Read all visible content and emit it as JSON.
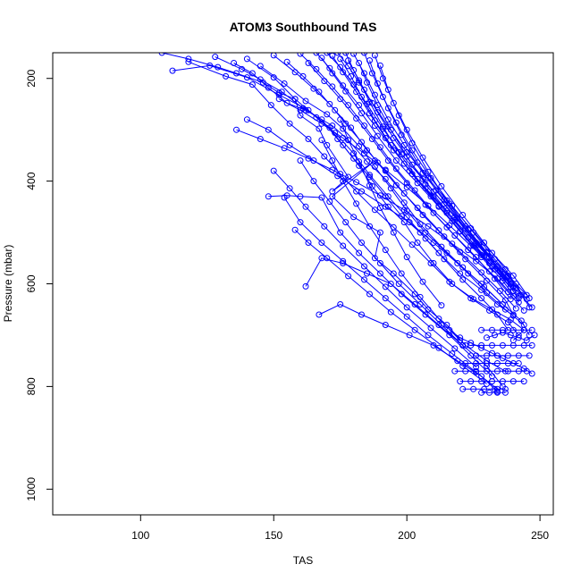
{
  "chart_data": {
    "type": "line",
    "title": "ATOM3 Southbound TAS",
    "xlabel": "TAS",
    "ylabel": "Pressure (mbar)",
    "xlim": [
      67,
      255
    ],
    "ylim": [
      1050,
      150
    ],
    "y_reversed": true,
    "x_ticks": [
      100,
      150,
      200,
      250
    ],
    "y_ticks": [
      200,
      400,
      600,
      800,
      1000
    ],
    "grid": false,
    "legend": "none",
    "marker": "open-circle",
    "colors": {
      "series": "#0000ff",
      "axis": "#000000",
      "background": "#ffffff"
    },
    "series": [
      {
        "x": [
          108,
          118,
          129,
          136,
          146,
          152,
          158,
          160,
          167,
          170,
          178,
          172,
          188,
          172,
          180,
          190,
          188,
          195,
          203,
          208,
          215,
          222,
          230,
          237
        ],
        "y": [
          150,
          162,
          178,
          190,
          208,
          228,
          240,
          272,
          298,
          330,
          392,
          420,
          360,
          430,
          470,
          500,
          550,
          580,
          620,
          650,
          680,
          720,
          750,
          770
        ]
      },
      {
        "x": [
          112,
          126,
          140,
          152,
          163,
          171,
          176,
          182,
          187,
          193,
          199,
          204,
          210,
          217,
          225,
          232,
          239,
          244,
          240
        ],
        "y": [
          185,
          175,
          198,
          232,
          262,
          296,
          330,
          370,
          410,
          450,
          480,
          520,
          560,
          600,
          630,
          650,
          670,
          690,
          710
        ]
      },
      {
        "x": [
          118,
          132,
          142,
          149,
          156,
          163,
          169,
          175,
          181,
          188,
          195,
          202,
          209,
          216,
          224,
          231,
          238,
          242
        ],
        "y": [
          168,
          196,
          212,
          252,
          288,
          318,
          352,
          386,
          420,
          456,
          490,
          524,
          560,
          596,
          628,
          652,
          675,
          700
        ]
      },
      {
        "x": [
          128,
          138,
          145,
          153,
          161,
          168,
          174,
          180,
          186,
          192,
          198,
          205,
          212,
          220,
          228,
          234,
          240
        ],
        "y": [
          158,
          182,
          202,
          226,
          258,
          280,
          318,
          356,
          392,
          430,
          468,
          500,
          540,
          580,
          612,
          640,
          662
        ]
      },
      {
        "x": [
          135,
          142,
          148,
          155,
          162,
          172,
          178,
          185,
          192,
          199,
          205,
          213,
          221,
          229,
          236,
          243,
          246
        ],
        "y": [
          170,
          190,
          218,
          248,
          262,
          292,
          320,
          362,
          396,
          442,
          484,
          528,
          568,
          606,
          640,
          672,
          700
        ]
      },
      {
        "x": [
          140,
          150,
          158,
          166,
          173,
          180,
          186,
          193,
          200,
          207,
          214,
          221,
          228,
          234,
          238
        ],
        "y": [
          162,
          198,
          240,
          276,
          306,
          346,
          388,
          430,
          470,
          512,
          552,
          592,
          628,
          660,
          690
        ]
      },
      {
        "x": [
          145,
          154,
          162,
          170,
          176,
          182,
          188,
          194,
          200,
          207,
          215,
          223,
          230,
          237,
          244
        ],
        "y": [
          176,
          210,
          244,
          270,
          298,
          332,
          372,
          414,
          458,
          500,
          540,
          580,
          618,
          650,
          680
        ]
      },
      {
        "x": [
          150,
          158,
          165,
          171,
          177,
          183,
          189,
          196,
          204,
          212,
          220,
          228,
          235,
          241
        ],
        "y": [
          155,
          188,
          220,
          250,
          288,
          324,
          364,
          408,
          452,
          496,
          538,
          578,
          614,
          648
        ]
      },
      {
        "x": [
          155,
          161,
          167,
          173,
          179,
          185,
          192,
          199,
          206,
          214,
          222,
          230,
          237,
          240
        ],
        "y": [
          168,
          196,
          226,
          262,
          296,
          340,
          380,
          424,
          466,
          508,
          552,
          594,
          632,
          660
        ]
      },
      {
        "x": [
          160,
          166,
          172,
          178,
          184,
          190,
          196,
          203,
          210,
          218,
          226,
          233,
          239
        ],
        "y": [
          152,
          182,
          216,
          252,
          292,
          334,
          376,
          418,
          462,
          506,
          548,
          590,
          630
        ]
      },
      {
        "x": [
          163,
          169,
          175,
          181,
          187,
          193,
          200,
          207,
          215,
          223,
          231,
          238,
          244
        ],
        "y": [
          170,
          205,
          240,
          278,
          318,
          360,
          404,
          446,
          490,
          534,
          576,
          616,
          652
        ]
      },
      {
        "x": [
          166,
          171,
          176,
          182,
          188,
          195,
          202,
          210,
          218,
          226,
          234,
          240
        ],
        "y": [
          150,
          180,
          214,
          252,
          292,
          340,
          386,
          430,
          476,
          522,
          566,
          606
        ]
      },
      {
        "x": [
          168,
          172,
          177,
          183,
          189,
          196,
          204,
          212,
          220,
          228,
          236,
          242
        ],
        "y": [
          160,
          190,
          225,
          268,
          312,
          360,
          404,
          450,
          498,
          544,
          588,
          628
        ]
      },
      {
        "x": [
          170,
          175,
          180,
          185,
          191,
          198,
          206,
          214,
          222,
          230,
          238,
          245
        ],
        "y": [
          150,
          178,
          212,
          250,
          298,
          348,
          396,
          444,
          492,
          540,
          584,
          622
        ]
      },
      {
        "x": [
          172,
          176,
          181,
          186,
          192,
          199,
          207,
          215,
          223,
          231,
          239
        ],
        "y": [
          156,
          188,
          226,
          268,
          316,
          366,
          414,
          462,
          510,
          556,
          600
        ]
      },
      {
        "x": [
          174,
          178,
          182,
          187,
          193,
          200,
          208,
          216,
          224,
          232,
          240,
          246
        ],
        "y": [
          150,
          176,
          208,
          248,
          294,
          344,
          394,
          444,
          492,
          540,
          584,
          628
        ]
      },
      {
        "x": [
          175,
          179,
          183,
          188,
          194,
          201,
          209,
          217,
          225,
          233,
          240
        ],
        "y": [
          162,
          196,
          236,
          282,
          330,
          380,
          430,
          478,
          526,
          572,
          614
        ]
      },
      {
        "x": [
          177,
          180,
          184,
          189,
          195,
          202,
          210,
          218,
          226,
          234,
          241
        ],
        "y": [
          150,
          184,
          222,
          266,
          316,
          368,
          420,
          470,
          520,
          566,
          608
        ]
      },
      {
        "x": [
          178,
          182,
          186,
          191,
          197,
          204,
          212,
          220,
          228,
          236,
          242
        ],
        "y": [
          165,
          204,
          246,
          294,
          344,
          396,
          448,
          498,
          548,
          594,
          636
        ]
      },
      {
        "x": [
          180,
          184,
          188,
          193,
          199,
          206,
          214,
          222,
          230,
          238,
          245
        ],
        "y": [
          152,
          190,
          232,
          280,
          330,
          384,
          436,
          488,
          538,
          586,
          630
        ]
      },
      {
        "x": [
          182,
          185,
          189,
          194,
          200,
          207,
          215,
          223,
          231,
          239
        ],
        "y": [
          170,
          208,
          252,
          300,
          352,
          406,
          458,
          510,
          560,
          606
        ]
      },
      {
        "x": [
          184,
          187,
          191,
          196,
          202,
          209,
          217,
          225,
          233,
          241,
          246
        ],
        "y": [
          150,
          190,
          236,
          286,
          340,
          394,
          448,
          500,
          552,
          600,
          646
        ]
      },
      {
        "x": [
          186,
          189,
          193,
          198,
          204,
          211,
          219,
          227,
          235,
          242
        ],
        "y": [
          165,
          210,
          258,
          310,
          364,
          418,
          472,
          524,
          576,
          624
        ]
      },
      {
        "x": [
          188,
          191,
          195,
          200,
          206,
          213,
          221,
          229,
          237,
          243
        ],
        "y": [
          155,
          200,
          248,
          300,
          354,
          410,
          466,
          520,
          572,
          622
        ]
      },
      {
        "x": [
          190,
          193,
          197,
          202,
          208,
          215,
          223,
          231,
          239
        ],
        "y": [
          175,
          222,
          272,
          326,
          382,
          438,
          494,
          548,
          600
        ]
      },
      {
        "x": [
          175,
          178,
          182,
          186,
          190,
          195,
          200,
          206,
          213
        ],
        "y": [
          280,
          320,
          362,
          408,
          452,
          500,
          548,
          596,
          642
        ]
      },
      {
        "x": [
          168,
          172,
          176,
          181,
          186,
          192,
          198,
          205,
          212,
          220
        ],
        "y": [
          320,
          360,
          400,
          444,
          488,
          534,
          580,
          626,
          668,
          710
        ]
      },
      {
        "x": [
          160,
          165,
          171,
          177,
          183,
          190,
          197,
          205,
          213,
          221
        ],
        "y": [
          360,
          400,
          440,
          480,
          520,
          560,
          600,
          640,
          680,
          720
        ]
      },
      {
        "x": [
          150,
          156,
          162,
          169,
          176,
          184,
          192,
          200,
          209,
          218,
          226
        ],
        "y": [
          380,
          414,
          450,
          488,
          526,
          566,
          606,
          646,
          686,
          726,
          762
        ]
      },
      {
        "x": [
          148,
          155,
          160,
          168,
          175,
          182,
          190,
          198,
          207,
          216,
          224,
          232
        ],
        "y": [
          430,
          428,
          430,
          432,
          500,
          540,
          580,
          620,
          660,
          700,
          740,
          780
        ]
      },
      {
        "x": [
          154,
          160,
          168,
          176,
          184,
          192,
          200,
          208,
          217,
          226,
          234
        ],
        "y": [
          432,
          480,
          520,
          556,
          592,
          628,
          664,
          700,
          736,
          772,
          805
        ]
      },
      {
        "x": [
          158,
          163,
          170,
          178,
          186,
          194,
          203,
          212,
          221,
          230
        ],
        "y": [
          495,
          520,
          550,
          585,
          620,
          655,
          690,
          725,
          760,
          795
        ]
      },
      {
        "x": [
          162,
          168,
          176,
          185,
          194,
          203,
          212,
          221,
          230,
          236
        ],
        "y": [
          605,
          550,
          560,
          580,
          600,
          640,
          680,
          720,
          760,
          800
        ]
      },
      {
        "x": [
          167,
          175,
          183,
          192,
          201,
          210,
          219,
          228,
          234
        ],
        "y": [
          660,
          640,
          660,
          680,
          700,
          720,
          750,
          780,
          810
        ]
      },
      {
        "x": [
          140,
          148,
          156,
          165,
          174,
          183,
          192,
          201,
          210,
          219,
          228,
          236
        ],
        "y": [
          280,
          300,
          330,
          360,
          390,
          420,
          450,
          480,
          520,
          560,
          600,
          640
        ]
      },
      {
        "x": [
          136,
          145,
          154,
          163,
          172,
          181,
          190,
          199,
          208,
          217,
          226,
          234,
          240
        ],
        "y": [
          300,
          318,
          336,
          356,
          378,
          402,
          428,
          456,
          488,
          522,
          556,
          590,
          624
        ]
      },
      {
        "x": [
          152,
          160,
          168,
          176,
          184,
          192,
          200,
          208,
          216,
          224,
          232,
          240,
          247
        ],
        "y": [
          240,
          262,
          288,
          316,
          346,
          378,
          412,
          448,
          486,
          526,
          566,
          606,
          646
        ]
      },
      {
        "x": [
          216,
          220,
          224,
          228,
          232,
          236,
          240,
          244,
          247
        ],
        "y": [
          690,
          705,
          715,
          725,
          735,
          745,
          755,
          765,
          775
        ]
      },
      {
        "x": [
          218,
          222,
          226,
          230,
          234,
          238,
          242,
          245
        ],
        "y": [
          770,
          770,
          770,
          770,
          770,
          770,
          770,
          770
        ]
      },
      {
        "x": [
          220,
          224,
          228,
          232,
          236,
          240,
          244
        ],
        "y": [
          790,
          790,
          790,
          790,
          790,
          790,
          790
        ]
      },
      {
        "x": [
          221,
          225,
          229,
          233,
          237
        ],
        "y": [
          805,
          805,
          805,
          805,
          805
        ]
      },
      {
        "x": [
          224,
          228,
          232,
          236,
          240,
          244,
          247
        ],
        "y": [
          720,
          720,
          720,
          720,
          720,
          720,
          720
        ]
      },
      {
        "x": [
          226,
          230,
          234,
          238,
          242,
          246
        ],
        "y": [
          740,
          740,
          740,
          740,
          740,
          740
        ]
      },
      {
        "x": [
          228,
          232,
          236,
          240,
          244,
          247
        ],
        "y": [
          690,
          690,
          690,
          690,
          690,
          690
        ]
      },
      {
        "x": [
          222,
          226,
          230,
          234,
          238,
          242
        ],
        "y": [
          755,
          755,
          755,
          755,
          755,
          755
        ]
      },
      {
        "x": [
          230,
          233,
          236,
          239,
          242,
          245,
          248
        ],
        "y": [
          705,
          700,
          695,
          700,
          705,
          710,
          700
        ]
      },
      {
        "x": [
          228,
          231,
          234,
          237
        ],
        "y": [
          812,
          812,
          812,
          812
        ]
      }
    ]
  }
}
